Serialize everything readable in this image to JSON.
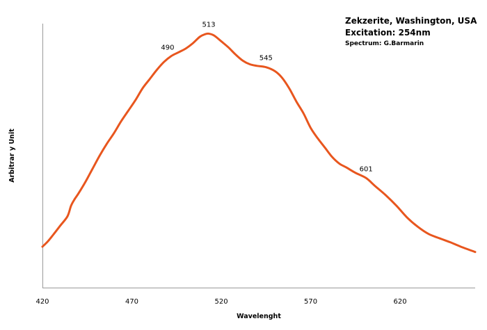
{
  "chart_data": {
    "type": "line",
    "title_lines": [
      "Zekzerite, Washington, USA",
      "Excitation: 254nm"
    ],
    "credit": "Spectrum: G.Barmarin",
    "xlabel": "Wavelenght",
    "ylabel": "Arbitrar y Unit",
    "xlim": [
      420,
      662
    ],
    "ylim": [
      0,
      100
    ],
    "x_ticks": [
      420,
      470,
      520,
      570,
      620
    ],
    "grid": false,
    "line_color": "#e8561e",
    "series": [
      {
        "x": [
          420,
          423,
          426,
          430,
          434,
          436,
          438,
          440,
          444,
          448,
          452,
          456,
          460,
          464,
          468,
          472,
          476,
          480,
          484,
          488,
          492,
          496,
          500,
          504,
          508,
          511,
          513,
          516,
          520,
          524,
          528,
          532,
          536,
          540,
          545,
          550,
          554,
          558,
          562,
          566,
          570,
          574,
          578,
          582,
          586,
          590,
          595,
          601,
          606,
          612,
          618,
          624,
          630,
          636,
          642,
          648,
          654,
          662
        ],
        "y": [
          15.5,
          17.5,
          20.0,
          23.5,
          27.0,
          31.0,
          33.5,
          35.5,
          40.0,
          45.0,
          50.0,
          54.5,
          58.5,
          63.0,
          67.0,
          71.0,
          75.5,
          79.0,
          82.5,
          85.5,
          87.7,
          89.1,
          90.5,
          92.5,
          95.0,
          96.0,
          96.2,
          95.5,
          93.3,
          91.0,
          88.3,
          86.0,
          84.6,
          84.0,
          83.5,
          82.0,
          79.5,
          75.5,
          70.5,
          66.0,
          60.5,
          56.5,
          53.0,
          49.5,
          47.0,
          45.5,
          43.5,
          41.5,
          38.5,
          35.0,
          31.0,
          26.5,
          23.0,
          20.3,
          18.7,
          17.2,
          15.5,
          13.5
        ]
      }
    ],
    "annotations": [
      {
        "label": "490",
        "x": 490,
        "y": 87.5
      },
      {
        "label": "513",
        "x": 513,
        "y": 96.2
      },
      {
        "label": "545",
        "x": 545,
        "y": 83.5
      },
      {
        "label": "601",
        "x": 601,
        "y": 41.5
      }
    ]
  }
}
